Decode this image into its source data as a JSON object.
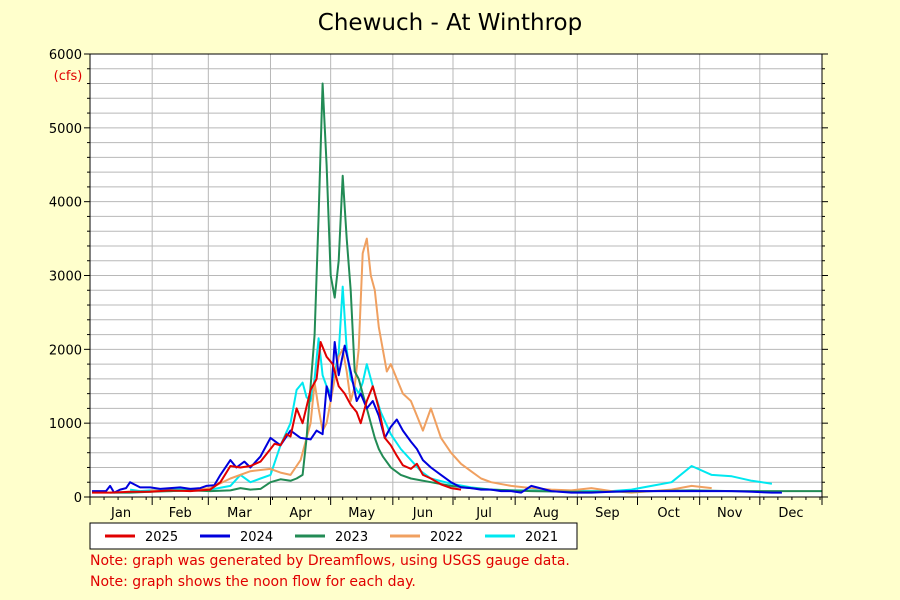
{
  "colors": {
    "background": "#ffffcc",
    "plot_background": "#ffffff",
    "grid": "#b8b8b8",
    "note": "#e00000"
  },
  "notes": [
    "Note: graph was generated by Dreamflows, using USGS gauge data.",
    "Note: graph shows the noon flow for each day."
  ],
  "chart_data": {
    "type": "line",
    "title": "Chewuch - At Winthrop",
    "ylabel": "(cfs)",
    "xlabel": "",
    "ylim": [
      0,
      6000
    ],
    "yticks": [
      0,
      1000,
      2000,
      3000,
      4000,
      5000,
      6000
    ],
    "xlim": [
      0,
      365
    ],
    "month_labels": [
      "Jan",
      "Feb",
      "Mar",
      "Apr",
      "May",
      "Jun",
      "Jul",
      "Aug",
      "Sep",
      "Oct",
      "Nov",
      "Dec"
    ],
    "grid": true,
    "legend_position": "bottom",
    "series": [
      {
        "name": "2025",
        "color": "#e00000",
        "x": [
          1,
          10,
          20,
          30,
          40,
          50,
          55,
          60,
          65,
          70,
          75,
          80,
          85,
          90,
          92,
          95,
          98,
          100,
          103,
          106,
          110,
          113,
          115,
          118,
          121,
          124,
          127,
          130,
          133,
          135,
          138,
          141,
          144,
          147,
          150,
          153,
          156,
          160,
          163,
          166,
          170,
          175,
          180,
          185
        ],
        "y": [
          60,
          60,
          70,
          70,
          90,
          80,
          90,
          100,
          200,
          420,
          400,
          420,
          480,
          650,
          720,
          700,
          850,
          820,
          1200,
          1000,
          1450,
          1600,
          2100,
          1900,
          1800,
          1500,
          1400,
          1250,
          1150,
          1000,
          1300,
          1500,
          1200,
          800,
          700,
          560,
          430,
          380,
          450,
          300,
          250,
          170,
          120,
          100
        ]
      },
      {
        "name": "2024",
        "color": "#0000dd",
        "x": [
          1,
          8,
          10,
          12,
          15,
          18,
          20,
          25,
          30,
          35,
          40,
          45,
          50,
          55,
          58,
          62,
          65,
          70,
          73,
          77,
          80,
          85,
          90,
          95,
          100,
          105,
          110,
          113,
          116,
          118,
          120,
          122,
          124,
          127,
          130,
          133,
          135,
          138,
          141,
          144,
          147,
          150,
          153,
          156,
          160,
          163,
          166,
          170,
          175,
          180,
          185,
          190,
          195,
          200,
          205,
          210,
          215,
          220,
          230,
          240,
          250,
          260,
          270,
          280,
          290,
          300,
          310,
          320,
          330,
          340,
          345
        ],
        "y": [
          80,
          80,
          150,
          60,
          100,
          120,
          200,
          130,
          130,
          110,
          120,
          130,
          110,
          120,
          150,
          160,
          300,
          500,
          400,
          480,
          400,
          550,
          800,
          700,
          900,
          800,
          780,
          900,
          850,
          1500,
          1300,
          2100,
          1650,
          2050,
          1700,
          1300,
          1400,
          1200,
          1300,
          1100,
          800,
          950,
          1050,
          900,
          750,
          650,
          500,
          400,
          300,
          200,
          130,
          120,
          100,
          100,
          80,
          80,
          60,
          150,
          80,
          60,
          60,
          70,
          80,
          80,
          80,
          80,
          80,
          80,
          70,
          60,
          60
        ]
      },
      {
        "name": "2023",
        "color": "#228b55",
        "x": [
          10,
          20,
          30,
          40,
          50,
          60,
          70,
          75,
          80,
          85,
          90,
          95,
          100,
          103,
          106,
          108,
          110,
          112,
          114,
          116,
          118,
          120,
          122,
          124,
          126,
          128,
          130,
          132,
          134,
          136,
          138,
          140,
          142,
          144,
          146,
          150,
          155,
          160,
          170,
          180,
          190,
          200,
          210,
          220,
          240,
          260,
          280,
          300,
          320,
          340,
          365
        ],
        "y": [
          60,
          60,
          70,
          80,
          90,
          80,
          90,
          120,
          100,
          110,
          200,
          240,
          220,
          250,
          300,
          800,
          1500,
          2200,
          3800,
          5600,
          4500,
          3000,
          2700,
          3200,
          4350,
          3500,
          2800,
          1700,
          1600,
          1400,
          1200,
          1000,
          800,
          650,
          550,
          400,
          300,
          250,
          200,
          150,
          120,
          100,
          90,
          80,
          70,
          70,
          80,
          90,
          80,
          80,
          80
        ]
      },
      {
        "name": "2022",
        "color": "#f0a060",
        "x": [
          30,
          40,
          50,
          60,
          70,
          80,
          90,
          95,
          100,
          105,
          108,
          110,
          112,
          114,
          116,
          118,
          120,
          124,
          126,
          128,
          130,
          132,
          134,
          136,
          138,
          140,
          142,
          144,
          146,
          148,
          150,
          153,
          156,
          160,
          163,
          166,
          170,
          175,
          180,
          185,
          190,
          195,
          200,
          210,
          220,
          230,
          240,
          250,
          260,
          270,
          280,
          290,
          300,
          310
        ],
        "y": [
          90,
          80,
          90,
          120,
          250,
          350,
          380,
          330,
          300,
          500,
          800,
          1000,
          1550,
          1200,
          900,
          1000,
          1300,
          1900,
          2000,
          1700,
          1300,
          1500,
          2000,
          3300,
          3500,
          3000,
          2800,
          2300,
          2000,
          1700,
          1800,
          1600,
          1400,
          1300,
          1100,
          900,
          1200,
          800,
          600,
          450,
          350,
          250,
          200,
          150,
          120,
          100,
          90,
          120,
          80,
          60,
          80,
          100,
          150,
          120
        ]
      },
      {
        "name": "2021",
        "color": "#00e8f0",
        "x": [
          20,
          25,
          30,
          40,
          50,
          60,
          70,
          75,
          80,
          85,
          90,
          95,
          100,
          103,
          106,
          108,
          110,
          112,
          114,
          116,
          118,
          120,
          124,
          126,
          128,
          130,
          132,
          134,
          136,
          138,
          140,
          142,
          145,
          150,
          155,
          160,
          165,
          170,
          180,
          190,
          200,
          210,
          220,
          230,
          240,
          250,
          260,
          270,
          280,
          290,
          300,
          310,
          320,
          330,
          340
        ],
        "y": [
          100,
          80,
          90,
          100,
          110,
          100,
          150,
          300,
          200,
          250,
          300,
          700,
          1000,
          1450,
          1550,
          1350,
          1300,
          1600,
          2150,
          1650,
          1500,
          1400,
          1950,
          2850,
          2000,
          1600,
          1500,
          1400,
          1550,
          1800,
          1600,
          1400,
          1150,
          850,
          650,
          500,
          350,
          250,
          180,
          130,
          100,
          90,
          90,
          80,
          80,
          80,
          80,
          100,
          150,
          200,
          420,
          300,
          280,
          220,
          180
        ]
      }
    ]
  }
}
